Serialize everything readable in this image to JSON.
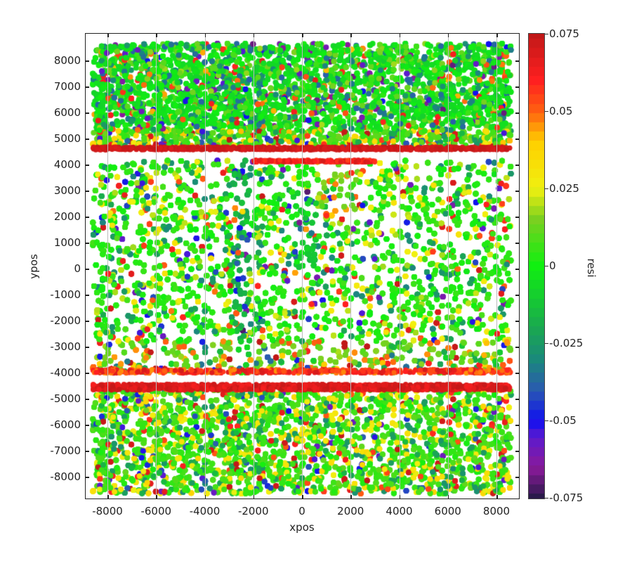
{
  "chart_data": {
    "type": "scatter",
    "title": "",
    "xlabel": "xpos",
    "ylabel": "ypos",
    "xlim": [
      -8900,
      8900
    ],
    "ylim": [
      -8900,
      8900
    ],
    "xticks": [
      -8000,
      -6000,
      -4000,
      -2000,
      0,
      2000,
      4000,
      6000,
      8000
    ],
    "yticks": [
      8000,
      7000,
      6000,
      5000,
      4000,
      3000,
      2000,
      1000,
      0,
      -1000,
      -2000,
      -3000,
      -4000,
      -5000,
      -6000,
      -7000,
      -8000
    ],
    "grid": true,
    "colorbar": {
      "label": "resi",
      "range": [
        -0.075,
        0.075
      ],
      "ticks": [
        0.075,
        0.05,
        0.025,
        0,
        -0.025,
        -0.05,
        -0.075
      ],
      "colormap": [
        {
          "value": -0.075,
          "color": "#2a1a4a"
        },
        {
          "value": -0.065,
          "color": "#8a1a9a"
        },
        {
          "value": -0.055,
          "color": "#5a1ad0"
        },
        {
          "value": -0.05,
          "color": "#1010f0"
        },
        {
          "value": -0.04,
          "color": "#2a5ab0"
        },
        {
          "value": -0.03,
          "color": "#1a8a7a"
        },
        {
          "value": -0.02,
          "color": "#1aa850"
        },
        {
          "value": 0.0,
          "color": "#10f010"
        },
        {
          "value": 0.015,
          "color": "#7ad020"
        },
        {
          "value": 0.025,
          "color": "#f0f010"
        },
        {
          "value": 0.04,
          "color": "#ffd000"
        },
        {
          "value": 0.05,
          "color": "#ff6010"
        },
        {
          "value": 0.06,
          "color": "#ff2020"
        },
        {
          "value": 0.075,
          "color": "#c01818"
        }
      ]
    },
    "regions": [
      {
        "name": "upper-block",
        "x": [
          -8600,
          8600
        ],
        "y": [
          4600,
          8700
        ],
        "dominant_resi": "~0 (green) with scattered negatives"
      },
      {
        "name": "upper-edge-band",
        "x": [
          -8600,
          8600
        ],
        "y": [
          4500,
          4700
        ],
        "dominant_resi": "~0.07 (red)"
      },
      {
        "name": "central-block",
        "x": [
          -8600,
          8600
        ],
        "y": [
          -4000,
          4200
        ],
        "dominant_resi": "~0 to 0.025 (green/yellow)",
        "features": [
          "vertical negative streak near x=-2500",
          "negative streak near x=0 for y in 0..3000"
        ]
      },
      {
        "name": "central-top-edge",
        "x": [
          -2000,
          3000
        ],
        "y": [
          4000,
          4200
        ],
        "dominant_resi": "~0.06 (red, partial)"
      },
      {
        "name": "central-bottom-edge",
        "x": [
          -8600,
          8600
        ],
        "y": [
          -4000,
          -3800
        ],
        "dominant_resi": "~0.05 (red/yellow)"
      },
      {
        "name": "lower-edge-band",
        "x": [
          -8600,
          8600
        ],
        "y": [
          -4700,
          -4400
        ],
        "dominant_resi": "~0.07 (red)"
      },
      {
        "name": "lower-block",
        "x": [
          -8600,
          8600
        ],
        "y": [
          -8700,
          -4500
        ],
        "dominant_resi": "~0 to 0.025 (green/yellow)"
      }
    ],
    "gaps_y": [
      [
        4200,
        4500
      ],
      [
        -4400,
        -4000
      ]
    ]
  }
}
